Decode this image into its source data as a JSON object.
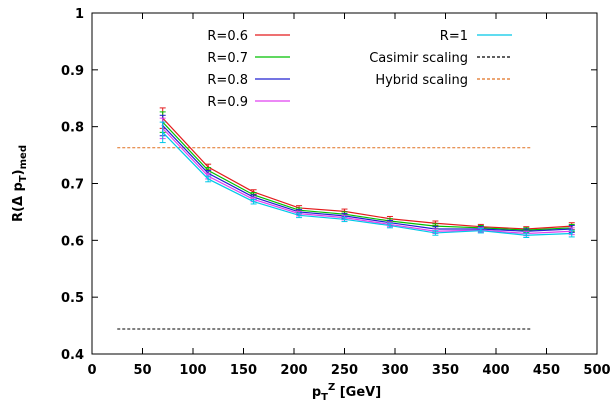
{
  "chart_data": {
    "type": "line",
    "xlabel": {
      "main": "p",
      "sub": "T",
      "sup": "Z",
      "unit": " [GeV]"
    },
    "ylabel": {
      "main": "R(Δ p",
      "sub": "T",
      "close": ")",
      "sub2": "med"
    },
    "xlim": [
      0,
      500
    ],
    "ylim": [
      0.4,
      1.0
    ],
    "xticks": [
      "0",
      "50",
      "100",
      "150",
      "200",
      "250",
      "300",
      "350",
      "400",
      "450",
      "500"
    ],
    "yticks": [
      "0.4",
      "0.5",
      "0.6",
      "0.7",
      "0.8",
      "0.9",
      "1"
    ],
    "x": [
      70,
      115,
      160,
      205,
      250,
      295,
      340,
      385,
      430,
      475
    ],
    "series": [
      {
        "name": "R=0.6",
        "color": "#e31a1c",
        "values": [
          0.815,
          0.729,
          0.685,
          0.657,
          0.651,
          0.638,
          0.63,
          0.624,
          0.62,
          0.625
        ],
        "errors": [
          0.018,
          0.005,
          0.004,
          0.004,
          0.004,
          0.004,
          0.004,
          0.004,
          0.004,
          0.006
        ]
      },
      {
        "name": "R=0.7",
        "color": "#00c000",
        "values": [
          0.808,
          0.723,
          0.68,
          0.653,
          0.646,
          0.634,
          0.625,
          0.622,
          0.618,
          0.622
        ],
        "errors": [
          0.018,
          0.005,
          0.004,
          0.004,
          0.004,
          0.004,
          0.004,
          0.004,
          0.004,
          0.006
        ]
      },
      {
        "name": "R=0.8",
        "color": "#2020d0",
        "values": [
          0.802,
          0.718,
          0.676,
          0.65,
          0.643,
          0.631,
          0.62,
          0.62,
          0.616,
          0.62
        ],
        "errors": [
          0.018,
          0.005,
          0.004,
          0.004,
          0.004,
          0.004,
          0.004,
          0.004,
          0.004,
          0.006
        ]
      },
      {
        "name": "R=0.9",
        "color": "#e040f0",
        "values": [
          0.797,
          0.713,
          0.672,
          0.647,
          0.64,
          0.628,
          0.616,
          0.618,
          0.612,
          0.616
        ],
        "errors": [
          0.018,
          0.005,
          0.004,
          0.004,
          0.004,
          0.004,
          0.004,
          0.004,
          0.004,
          0.006
        ]
      },
      {
        "name": "R=1",
        "color": "#00c8e8",
        "values": [
          0.79,
          0.708,
          0.668,
          0.644,
          0.637,
          0.626,
          0.613,
          0.617,
          0.609,
          0.612
        ],
        "errors": [
          0.018,
          0.005,
          0.004,
          0.004,
          0.004,
          0.004,
          0.004,
          0.004,
          0.004,
          0.006
        ]
      }
    ],
    "reference_lines": [
      {
        "name": "Casimir scaling",
        "color": "#000000",
        "y": 0.444,
        "x_range": [
          25,
          435
        ]
      },
      {
        "name": "Hybrid scaling",
        "color": "#e07020",
        "y": 0.763,
        "x_range": [
          25,
          435
        ]
      }
    ],
    "grid": false,
    "legend_placement": "top"
  }
}
